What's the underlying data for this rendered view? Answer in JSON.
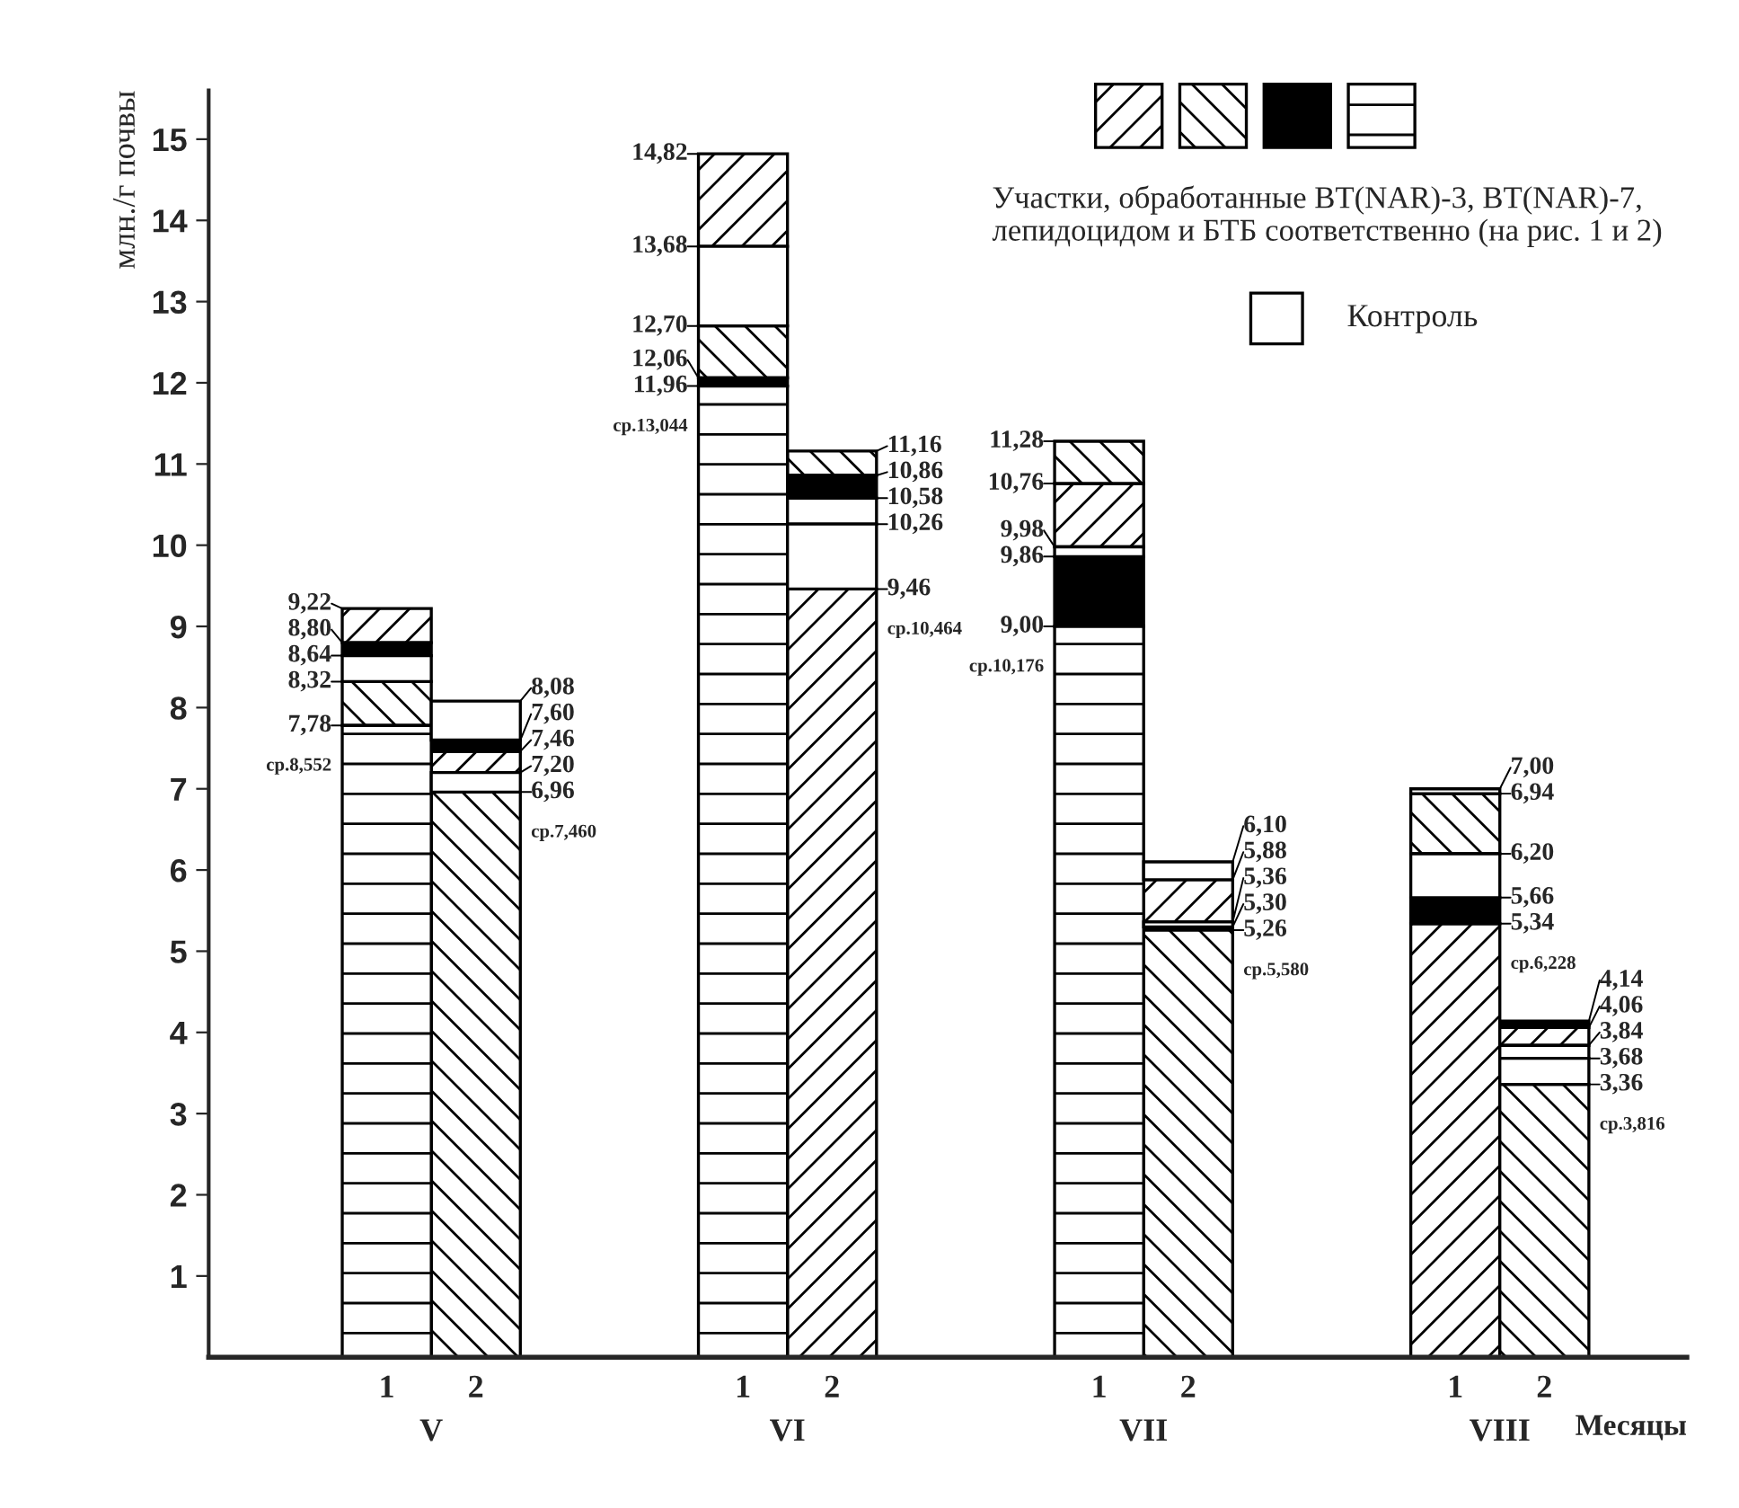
{
  "chart_data": {
    "type": "bar",
    "ylabel": "млн./г почвы",
    "xlabel": "Месяцы",
    "categories": [
      "1",
      "2",
      null,
      null,
      "1",
      "2",
      null,
      null,
      "1",
      "2",
      null,
      null,
      "1",
      "2"
    ],
    "ylim": [
      0,
      15.6
    ],
    "yticks": [
      1,
      2,
      3,
      4,
      5,
      6,
      7,
      8,
      9,
      10,
      11,
      12,
      13,
      14,
      15
    ],
    "legend": "top right",
    "legend_title": "Участки, обработанные BT(NAR)-3, BT(NAR)-7, лепидоцидом и БТБ соответственно (на рис. 1 и 2)",
    "series": [
      {
        "name": null,
        "color": "#000000",
        "base": [
          8.8,
          7.2,
          null,
          null,
          13.68,
          0,
          null,
          null,
          9.98,
          5.36,
          null,
          null,
          0,
          3.84
        ],
        "values": [
          0.42,
          0.26,
          null,
          null,
          1.14,
          9.46,
          null,
          null,
          0.78,
          0.52,
          null,
          null,
          5.34,
          0.22
        ],
        "value_labels": [
          "9,22",
          "7,46",
          null,
          null,
          "14,82",
          "9,46",
          null,
          null,
          "10,76",
          "5,88",
          null,
          null,
          "5,34",
          "4,06"
        ]
      },
      {
        "name": null,
        "color": "#000000",
        "base": [
          7.78,
          0,
          null,
          null,
          12.06,
          10.86,
          null,
          null,
          10.76,
          0,
          null,
          null,
          6.2,
          0
        ],
        "values": [
          0.54,
          6.96,
          null,
          null,
          0.64,
          0.3,
          null,
          null,
          0.52,
          5.26,
          null,
          null,
          0.74,
          3.36
        ],
        "value_labels": [
          "8,32",
          "6,96",
          null,
          null,
          "12,70",
          "11,16",
          null,
          null,
          "11,28",
          "5,26",
          null,
          null,
          "6,94",
          "3,36"
        ]
      },
      {
        "name": null,
        "color": "#000000",
        "base": [
          8.64,
          7.46,
          null,
          null,
          11.96,
          10.58,
          null,
          null,
          9.0,
          5.26,
          null,
          null,
          5.34,
          4.06
        ],
        "values": [
          0.16,
          0.14,
          null,
          null,
          0.1,
          0.28,
          null,
          null,
          0.86,
          0.04,
          null,
          null,
          0.32,
          0.08
        ],
        "value_labels": [
          "8,80",
          "7,60",
          null,
          null,
          "12,06",
          "10,86",
          null,
          null,
          "9,86",
          "5,30",
          null,
          null,
          "5,66",
          "4,14"
        ]
      },
      {
        "name": null,
        "color": "#000000",
        "base": [
          0,
          6.96,
          null,
          null,
          0,
          10.26,
          null,
          null,
          0,
          5.88,
          null,
          null,
          6.94,
          3.68
        ],
        "values": [
          7.78,
          0.24,
          null,
          null,
          11.96,
          0.32,
          null,
          null,
          9.0,
          0.22,
          null,
          null,
          0.06,
          0.16
        ],
        "value_labels": [
          "7,78",
          "7,20",
          null,
          null,
          "11,96",
          "10,58",
          null,
          null,
          "9,00",
          "6,10",
          null,
          null,
          "7,00",
          "3,84"
        ]
      },
      {
        "name": "Контроль",
        "color": "#ffffff",
        "base": [
          8.32,
          7.6,
          null,
          null,
          12.7,
          9.46,
          null,
          null,
          9.86,
          5.3,
          null,
          null,
          5.66,
          3.36
        ],
        "values": [
          0.32,
          0.48,
          null,
          null,
          0.98,
          0.8,
          null,
          null,
          0.12,
          0.06,
          null,
          null,
          0.54,
          0.32
        ],
        "value_labels": [
          "8,64",
          "8,08",
          null,
          null,
          "13,68",
          "10,26",
          null,
          null,
          "9,98",
          "5,36",
          null,
          null,
          "6,20",
          "3,68"
        ]
      }
    ],
    "annotations": [
      "V",
      "VI",
      "VII",
      "VIII",
      "ср.8,552",
      "ср.7,460",
      "ср.13,044",
      "ср.10,464",
      "ср.10,176",
      "ср.5,580",
      "ср.6,228",
      "ср.3,816"
    ]
  }
}
